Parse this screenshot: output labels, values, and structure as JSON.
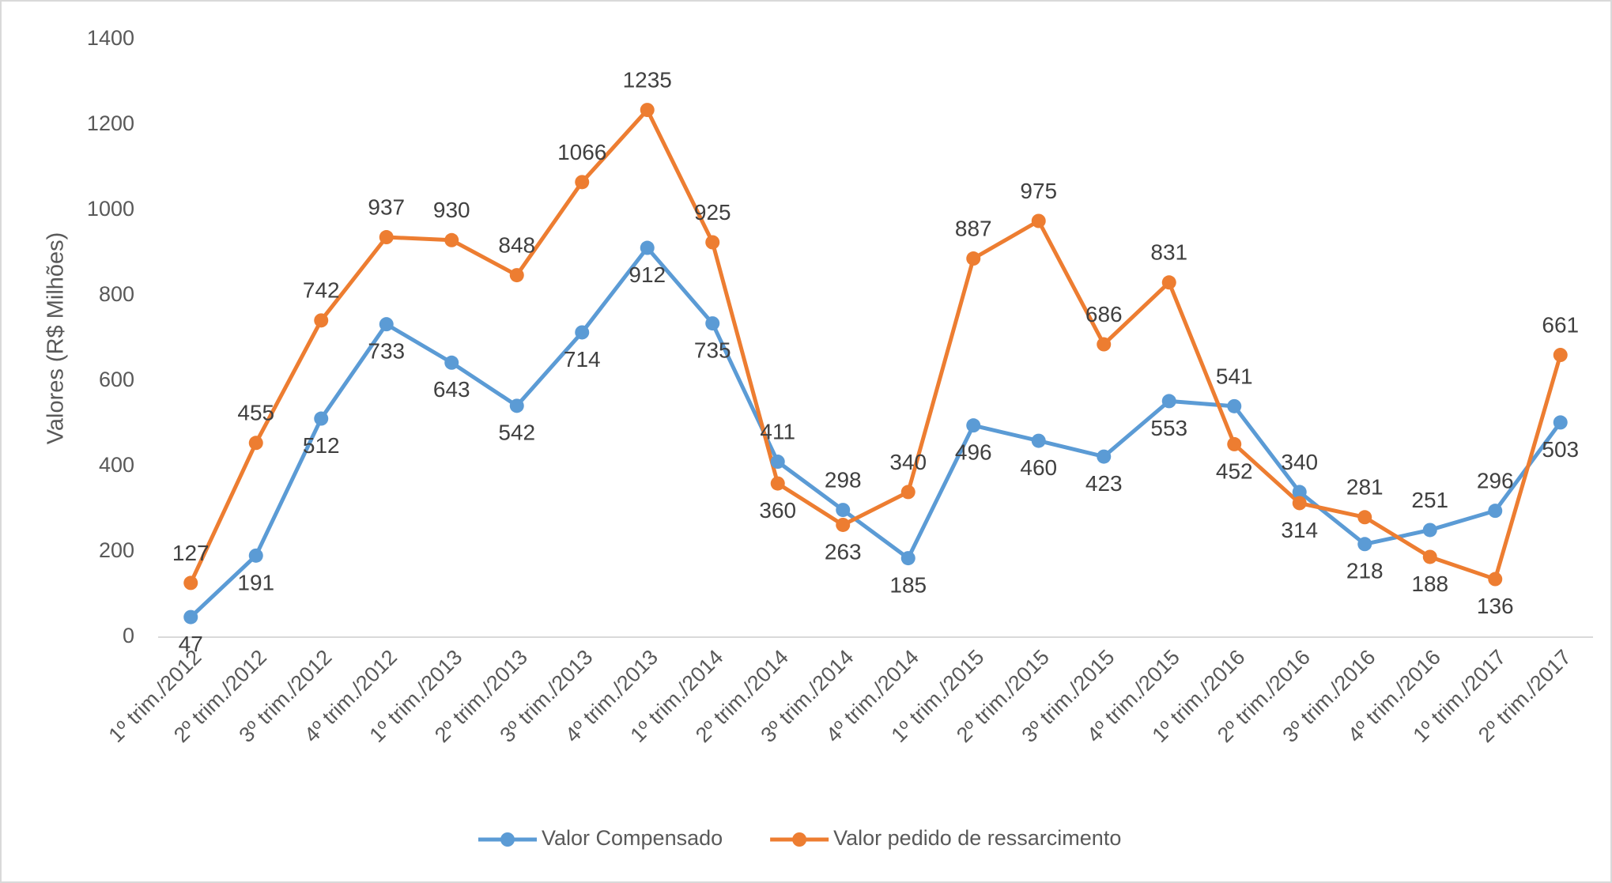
{
  "chart_data": {
    "type": "line",
    "y_axis_label": "Valores (R$ Milhões)",
    "categories": [
      "1º trim./2012",
      "2º trim./2012",
      "3º trim./2012",
      "4º trim./2012",
      "1º trim./2013",
      "2º trim./2013",
      "3º trim./2013",
      "4º trim./2013",
      "1º trim./2014",
      "2º trim./2014",
      "3º trim./2014",
      "4º trim./2014",
      "1º trim./2015",
      "2º trim./2015",
      "3º trim./2015",
      "4º trim./2015",
      "1º trim./2016",
      "2º trim./2016",
      "3º trim./2016",
      "4º trim./2016",
      "1º trim./2017",
      "2º trim./2017"
    ],
    "series": [
      {
        "name": "Valor Compensado",
        "color": "#5b9bd5",
        "values": [
          47,
          191,
          512,
          733,
          643,
          542,
          714,
          912,
          735,
          411,
          298,
          185,
          496,
          460,
          423,
          553,
          541,
          340,
          218,
          251,
          296,
          503
        ]
      },
      {
        "name": "Valor pedido de ressarcimento",
        "color": "#ed7d31",
        "values": [
          127,
          455,
          742,
          937,
          930,
          848,
          1066,
          1235,
          925,
          360,
          263,
          340,
          887,
          975,
          686,
          831,
          452,
          314,
          281,
          188,
          136,
          661
        ]
      }
    ],
    "ylim": [
      0,
      1400
    ],
    "yticks": [
      0,
      200,
      400,
      600,
      800,
      1000,
      1200,
      1400
    ],
    "grid": false,
    "legend": "bottom"
  }
}
